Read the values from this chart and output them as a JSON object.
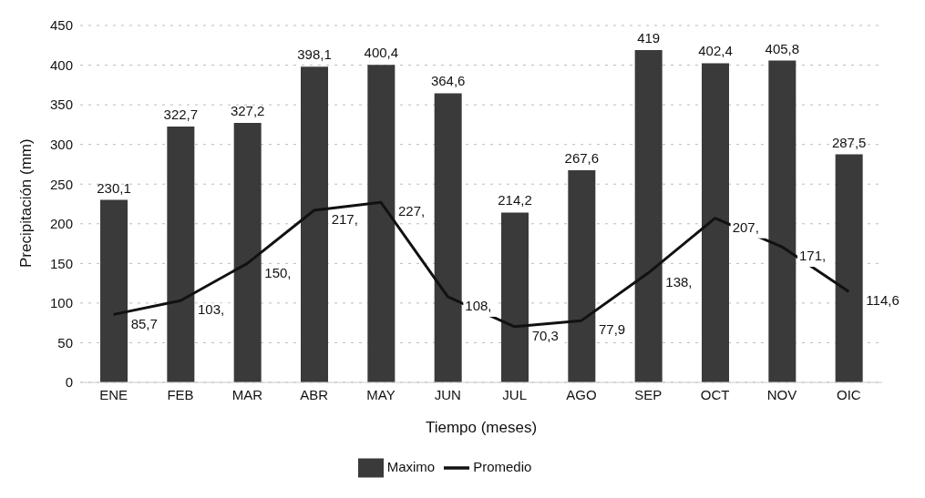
{
  "chart_data": {
    "type": "bar",
    "xlabel": "Tiempo (meses)",
    "ylabel": "Precipitación (mm)",
    "categories": [
      "ENE",
      "FEB",
      "MAR",
      "ABR",
      "MAY",
      "JUN",
      "JUL",
      "AGO",
      "SEP",
      "OCT",
      "NOV",
      "OIC"
    ],
    "series": [
      {
        "name": "Maximo",
        "color": "#3a3a3a",
        "values": [
          230.1,
          322.7,
          327.2,
          398.1,
          400.4,
          364.6,
          214.2,
          267.6,
          419,
          402.4,
          405.8,
          287.5
        ],
        "value_labels": [
          "230,1",
          "322,7",
          "327,2",
          "398,1",
          "400,4",
          "364,6",
          "214,2",
          "267,6",
          "419",
          "402,4",
          "405,8",
          "287,5"
        ]
      },
      {
        "name": "Promedio",
        "type": "line",
        "color": "#111111",
        "values": [
          85.7,
          103,
          150,
          217,
          227,
          108,
          70.3,
          77.9,
          138,
          207,
          171,
          114.6
        ],
        "value_labels": [
          "85,7",
          "103,",
          "150,",
          "217,",
          "227,",
          "108,",
          "70,3",
          "77,9",
          "138,",
          "207,",
          "171,",
          "114,6"
        ]
      }
    ],
    "ylim": [
      0,
      450
    ],
    "yticks": [
      0,
      50,
      100,
      150,
      200,
      250,
      300,
      350,
      400,
      450
    ],
    "grid": "y",
    "legend": "bottom"
  }
}
